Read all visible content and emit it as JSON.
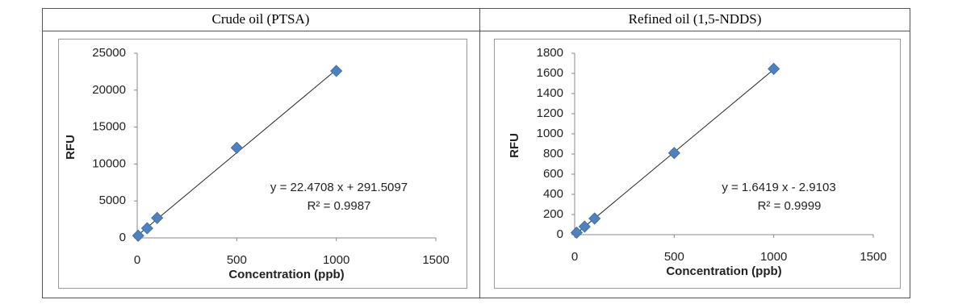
{
  "chart_data": [
    {
      "type": "scatter",
      "title": "Crude oil (PTSA)",
      "x_label": "Concentration (ppb)",
      "y_label": "RFU",
      "x": [
        5,
        50,
        100,
        500,
        1000
      ],
      "values": [
        300,
        1300,
        2700,
        12200,
        22600
      ],
      "color": "#4f81bd",
      "xlim": [
        0,
        1500
      ],
      "xticks": [
        0,
        500,
        1000,
        1500
      ],
      "ylim": [
        0,
        25000
      ],
      "yticks": [
        0,
        5000,
        10000,
        15000,
        20000,
        25000
      ],
      "trendline": {
        "slope": 22.4708,
        "intercept": 291.5097,
        "label": "y = 22.4708 x + 291.5097"
      },
      "r2_label": "R² = 0.9987"
    },
    {
      "type": "scatter",
      "title": "Refined oil (1,5-NDDS)",
      "x_label": "Concentration (ppb)",
      "y_label": "RFU",
      "x": [
        10,
        50,
        100,
        500,
        1000
      ],
      "values": [
        20,
        80,
        160,
        810,
        1645
      ],
      "color": "#4f81bd",
      "xlim": [
        0,
        1500
      ],
      "xticks": [
        0,
        500,
        1000,
        1500
      ],
      "ylim": [
        0,
        1800
      ],
      "yticks": [
        0,
        200,
        400,
        600,
        800,
        1000,
        1200,
        1400,
        1600,
        1800
      ],
      "trendline": {
        "slope": 1.6419,
        "intercept": -2.9103,
        "label": "y = 1.6419 x - 2.9103"
      },
      "r2_label": "R² = 0.9999"
    }
  ]
}
